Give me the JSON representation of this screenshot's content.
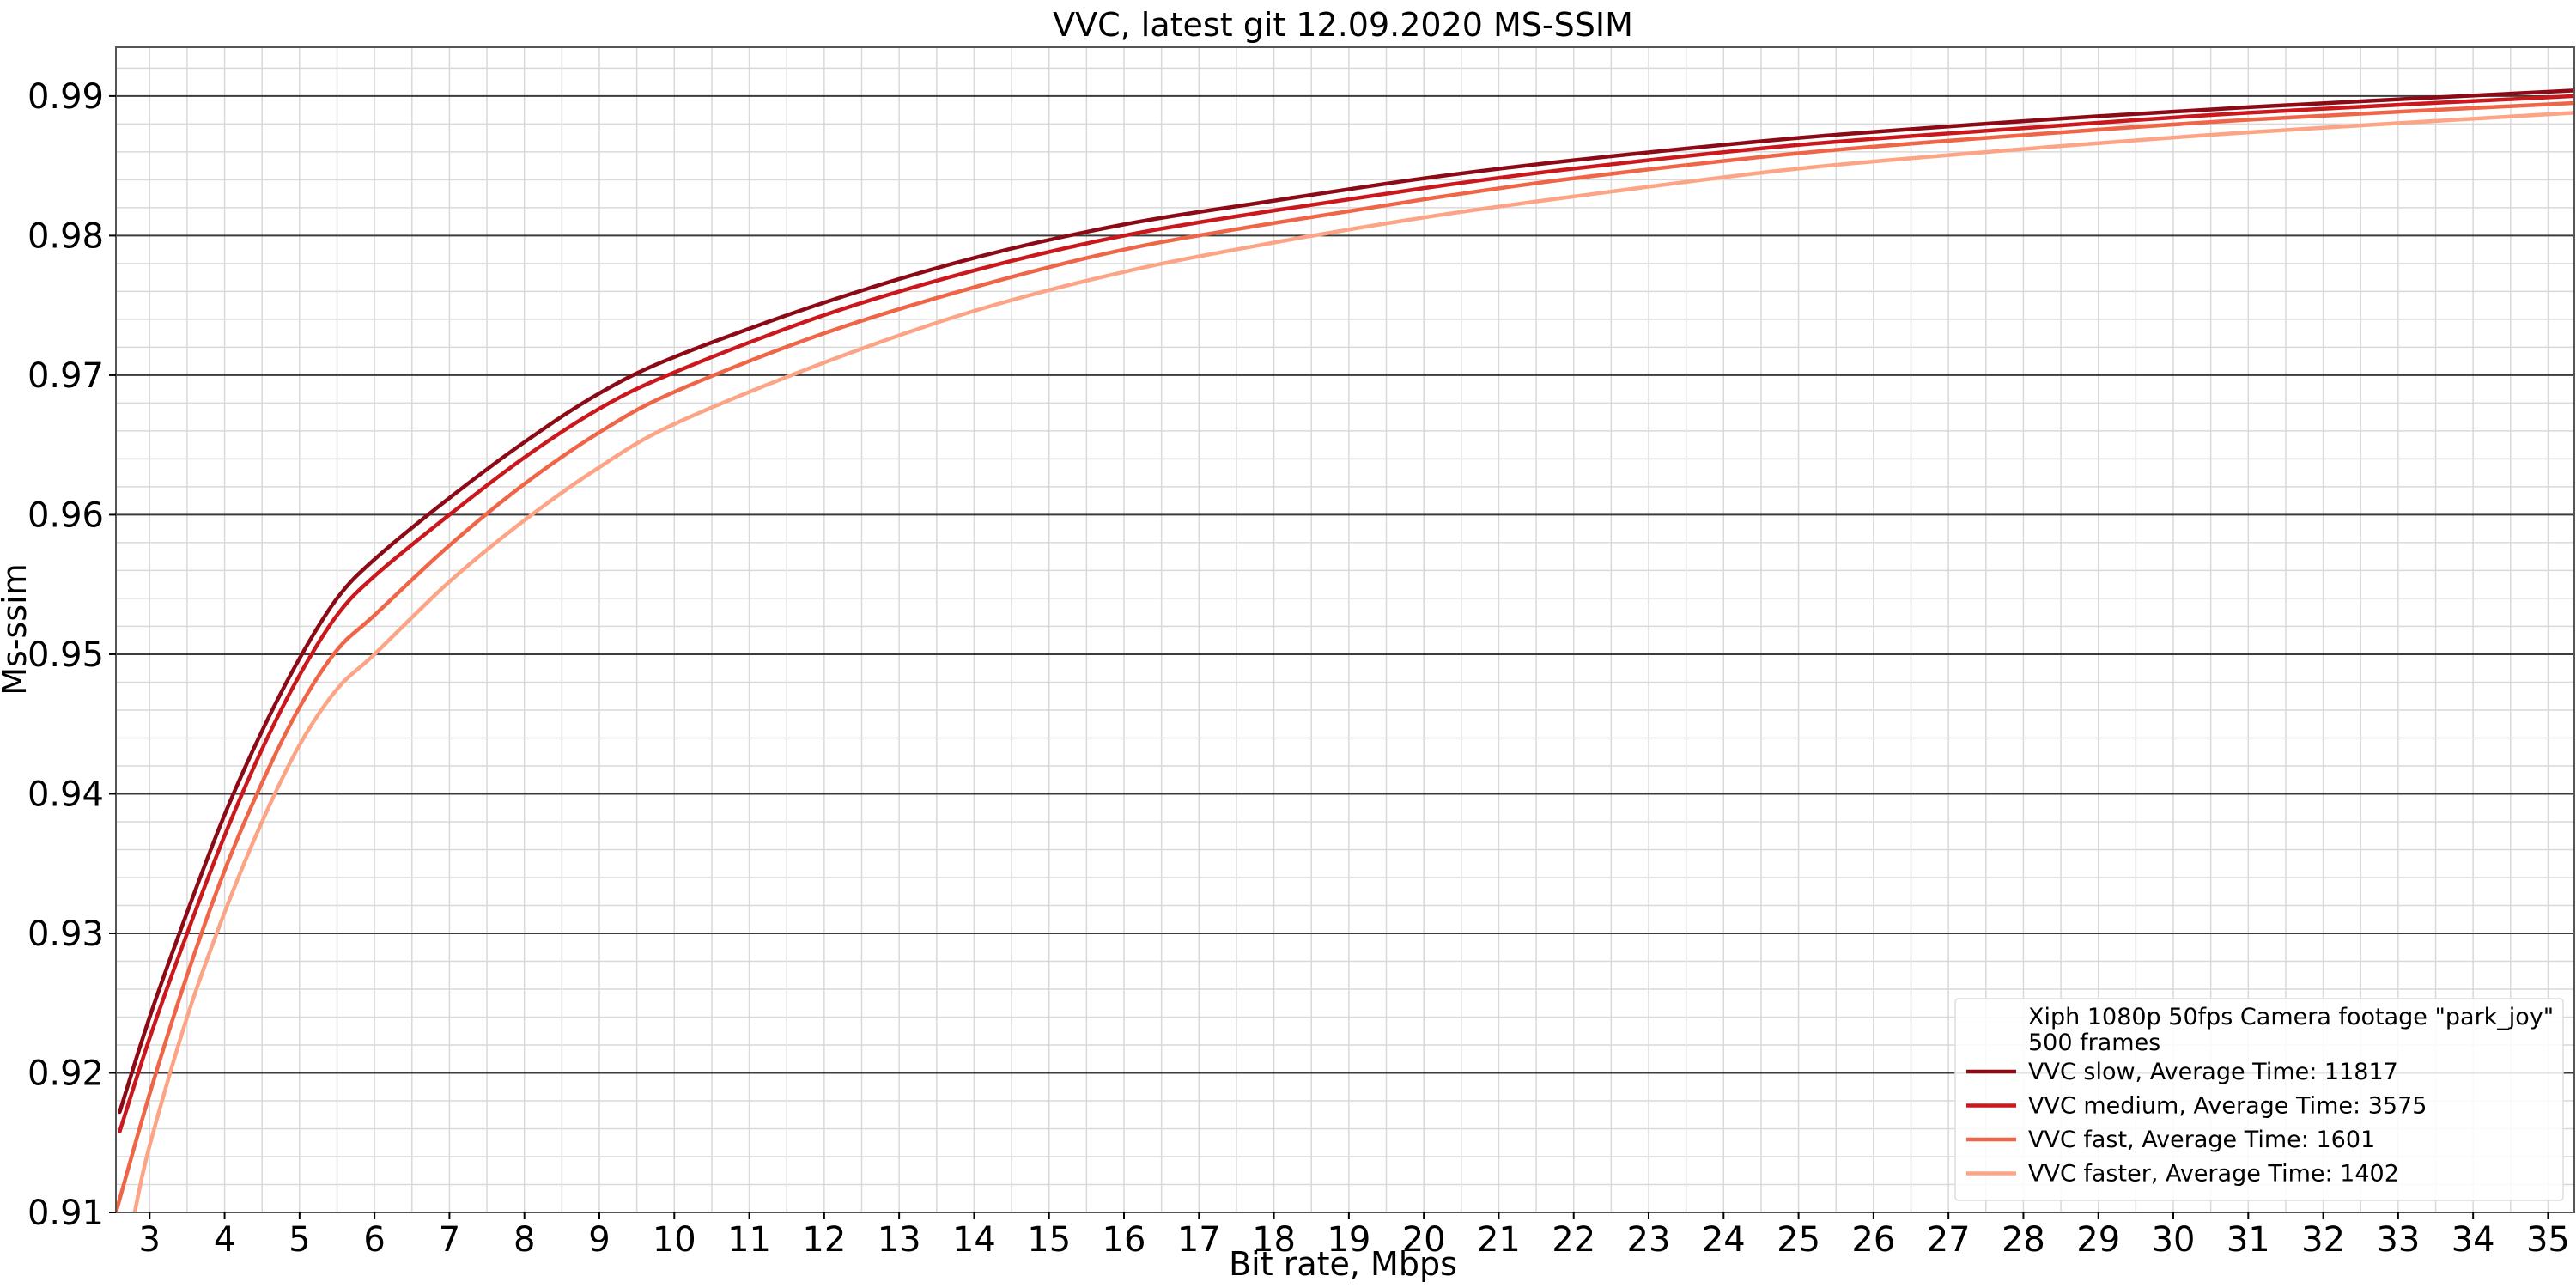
{
  "chart_data": {
    "type": "line",
    "title": "VVC, latest git 12.09.2020 MS-SSIM",
    "xlabel": "Bit rate, Mbps",
    "ylabel": "Ms-ssim",
    "xlim": [
      2.55,
      35.35
    ],
    "ylim": [
      0.91,
      0.9935
    ],
    "xticks": [
      3,
      4,
      5,
      6,
      7,
      8,
      9,
      10,
      11,
      12,
      13,
      14,
      15,
      16,
      17,
      18,
      19,
      20,
      21,
      22,
      23,
      24,
      25,
      26,
      27,
      28,
      29,
      30,
      31,
      32,
      33,
      34,
      35
    ],
    "yticks": [
      0.91,
      0.92,
      0.93,
      0.94,
      0.95,
      0.96,
      0.97,
      0.98,
      0.99
    ],
    "grid": true,
    "legend_position": "bottom-right",
    "legend_header": [
      "Xiph 1080p 50fps Camera footage \"park_joy\"",
      "500 frames"
    ],
    "series": [
      {
        "name": "VVC slow, Average Time: 11817",
        "color": "#8b0a16",
        "x": [
          2.6,
          3,
          3.5,
          4,
          4.5,
          5,
          5.5,
          6,
          7,
          8,
          9,
          10,
          12,
          14,
          16,
          18,
          20,
          22,
          25,
          28,
          31,
          35.35
        ],
        "y": [
          0.9172,
          0.924,
          0.9315,
          0.9385,
          0.9445,
          0.9497,
          0.954,
          0.9568,
          0.9612,
          0.9652,
          0.9687,
          0.9713,
          0.9752,
          0.9784,
          0.9808,
          0.9825,
          0.9841,
          0.9854,
          0.987,
          0.9882,
          0.9892,
          0.9904
        ]
      },
      {
        "name": "VVC medium, Average Time: 3575",
        "color": "#cb181d",
        "x": [
          2.6,
          3,
          3.5,
          4,
          4.5,
          5,
          5.5,
          6,
          7,
          8,
          9,
          10,
          12,
          14,
          16,
          18,
          20,
          22,
          25,
          28,
          31,
          35.35
        ],
        "y": [
          0.9158,
          0.9225,
          0.93,
          0.937,
          0.9432,
          0.9485,
          0.9528,
          0.9556,
          0.96,
          0.9641,
          0.9676,
          0.9702,
          0.9743,
          0.9775,
          0.98,
          0.9818,
          0.9834,
          0.9848,
          0.9865,
          0.9877,
          0.9888,
          0.99
        ]
      },
      {
        "name": "VVC fast, Average Time: 1601",
        "color": "#ef6548",
        "x": [
          2.55,
          3,
          3.5,
          4,
          4.5,
          5,
          5.5,
          6,
          7,
          8,
          9,
          10,
          12,
          14,
          16,
          18,
          20,
          22,
          25,
          28,
          31,
          35.35
        ],
        "y": [
          0.91,
          0.9185,
          0.927,
          0.9345,
          0.9408,
          0.9462,
          0.9503,
          0.9528,
          0.9578,
          0.9622,
          0.9659,
          0.9688,
          0.973,
          0.9763,
          0.979,
          0.9809,
          0.9826,
          0.9841,
          0.9859,
          0.9872,
          0.9883,
          0.9895
        ]
      },
      {
        "name": "VVC faster, Average Time: 1402",
        "color": "#fca486",
        "x": [
          2.8,
          3,
          3.5,
          4,
          4.5,
          5,
          5.5,
          6,
          7,
          8,
          9,
          10,
          12,
          14,
          16,
          18,
          20,
          22,
          25,
          28,
          31,
          35.35
        ],
        "y": [
          0.91,
          0.9148,
          0.924,
          0.9315,
          0.938,
          0.9435,
          0.9475,
          0.95,
          0.9552,
          0.9596,
          0.9634,
          0.9665,
          0.9709,
          0.9746,
          0.9774,
          0.9795,
          0.9813,
          0.9828,
          0.9848,
          0.9862,
          0.9874,
          0.9888
        ]
      }
    ]
  }
}
